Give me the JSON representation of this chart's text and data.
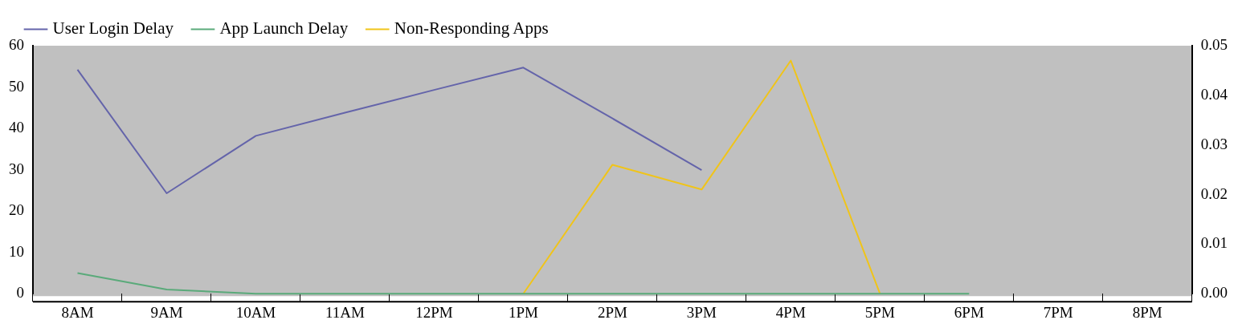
{
  "chart_data": {
    "type": "line",
    "categories": [
      "8AM",
      "9AM",
      "10AM",
      "11AM",
      "12PM",
      "1PM",
      "2PM",
      "3PM",
      "4PM",
      "5PM",
      "6PM",
      "7PM",
      "8PM"
    ],
    "series": [
      {
        "name": "User Login Delay",
        "color": "#6464aa",
        "values": [
          54.2,
          24.3,
          38.2,
          43.8,
          49.3,
          54.7,
          42.4,
          29.9,
          null,
          null,
          null,
          null,
          null
        ]
      },
      {
        "name": "App Launch Delay",
        "color": "#5aaa7a",
        "values": [
          5,
          1,
          0,
          0,
          0,
          0,
          0,
          0,
          0,
          0,
          0,
          null,
          null
        ]
      },
      {
        "name": "Non-Responding Apps",
        "color": "#f0c419",
        "axis": "y2",
        "values": [
          null,
          null,
          null,
          null,
          null,
          0,
          0.026,
          0.021,
          0.047,
          0,
          null,
          null,
          null
        ]
      }
    ],
    "ylim": [
      0,
      60
    ],
    "yticks": [
      0,
      10,
      20,
      30,
      40,
      50,
      60
    ],
    "y2lim": [
      0,
      0.05
    ],
    "y2ticks": [
      {
        "value": 0,
        "label": "0.00"
      },
      {
        "value": 0.01,
        "label": "0.01"
      },
      {
        "value": 0.02,
        "label": "0.02"
      },
      {
        "value": 0.03,
        "label": "0.03"
      },
      {
        "value": 0.04,
        "label": "0.04"
      },
      {
        "value": 0.05,
        "label": "0.05"
      }
    ],
    "grid": false,
    "legend": "top left",
    "marker": "none",
    "line_style": "solid"
  }
}
